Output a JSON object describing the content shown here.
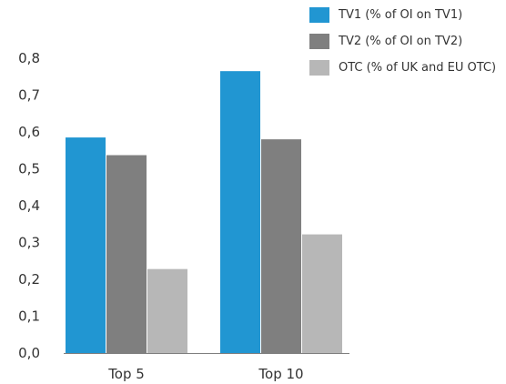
{
  "chart_data": {
    "type": "bar",
    "title": "",
    "xlabel": "",
    "ylabel": "",
    "categories": [
      "Top 5",
      "Top 10"
    ],
    "series": [
      {
        "name": "TV1 (% of OI on TV1)",
        "values": [
          0.585,
          0.765
        ],
        "color": "#2196d2"
      },
      {
        "name": "TV2 (% of OI on TV2)",
        "values": [
          0.537,
          0.58
        ],
        "color": "#7f7f7f"
      },
      {
        "name": "OTC (% of UK and EU OTC)",
        "values": [
          0.228,
          0.322
        ],
        "color": "#b7b7b7"
      }
    ],
    "ylim": [
      0,
      0.8
    ],
    "yticks": [
      "0,0",
      "0,1",
      "0,2",
      "0,3",
      "0,4",
      "0,5",
      "0,6",
      "0,7",
      "0,8"
    ],
    "grid": false,
    "legend_position": "top-right"
  }
}
